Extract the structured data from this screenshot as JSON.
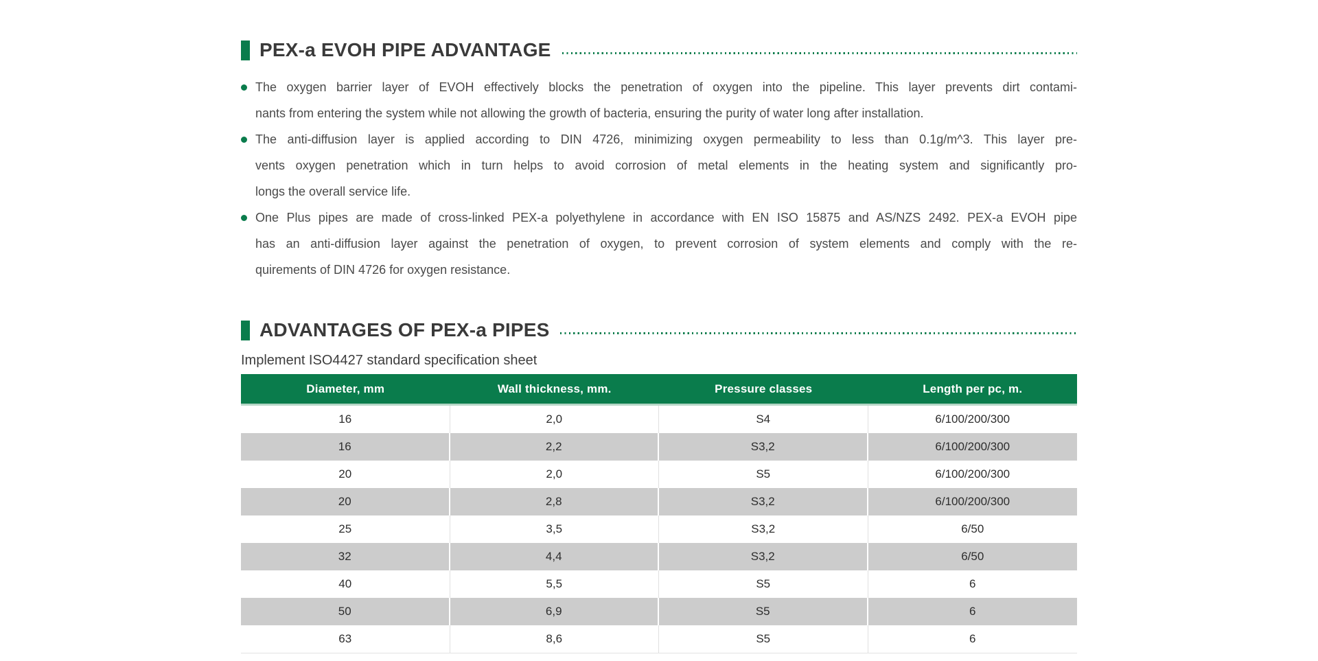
{
  "theme": {
    "accent_green": "#0A7C4C",
    "table_header_green": "#0A7C4C",
    "row_gray": "#CCCCCC",
    "body_text_color": "#4A4A4A"
  },
  "section1": {
    "title": "PEX-a EVOH PIPE ADVANTAGE",
    "bullets": [
      {
        "lines": [
          "The oxygen barrier layer of EVOH effectively blocks the penetration of oxygen into the pipeline. This layer prevents dirt contami-",
          "nants from entering the system while not allowing the growth of bacteria, ensuring the purity of water long after installation."
        ]
      },
      {
        "lines": [
          "The anti-diffusion layer is applied according to DIN 4726, minimizing oxygen permeability to less than 0.1g/m^3. This layer pre-",
          "vents oxygen penetration which in turn helps to avoid corrosion of metal elements in the heating system and significantly pro-",
          "longs the overall service life."
        ]
      },
      {
        "lines": [
          "One Plus pipes are made of cross-linked PEX-a polyethylene in accordance with EN ISO 15875 and AS/NZS 2492. PEX-a EVOH pipe",
          "has an anti-diffusion layer against the penetration of oxygen, to prevent corrosion of system elements and comply with the re-",
          "quirements of DIN 4726 for oxygen resistance."
        ]
      }
    ]
  },
  "section2": {
    "title": "ADVANTAGES OF PEX-a PIPES",
    "subtitle": "Implement ISO4427 standard specification sheet",
    "table": {
      "headers": [
        "Diameter, mm",
        "Wall thickness, mm.",
        "Pressure classes",
        "Length per pc, m."
      ],
      "rows": [
        [
          "16",
          "2,0",
          "S4",
          "6/100/200/300"
        ],
        [
          "16",
          "2,2",
          "S3,2",
          "6/100/200/300"
        ],
        [
          "20",
          "2,0",
          "S5",
          "6/100/200/300"
        ],
        [
          "20",
          "2,8",
          "S3,2",
          "6/100/200/300"
        ],
        [
          "25",
          "3,5",
          "S3,2",
          "6/50"
        ],
        [
          "32",
          "4,4",
          "S3,2",
          "6/50"
        ],
        [
          "40",
          "5,5",
          "S5",
          "6"
        ],
        [
          "50",
          "6,9",
          "S5",
          "6"
        ],
        [
          "63",
          "8,6",
          "S5",
          "6"
        ]
      ]
    }
  }
}
